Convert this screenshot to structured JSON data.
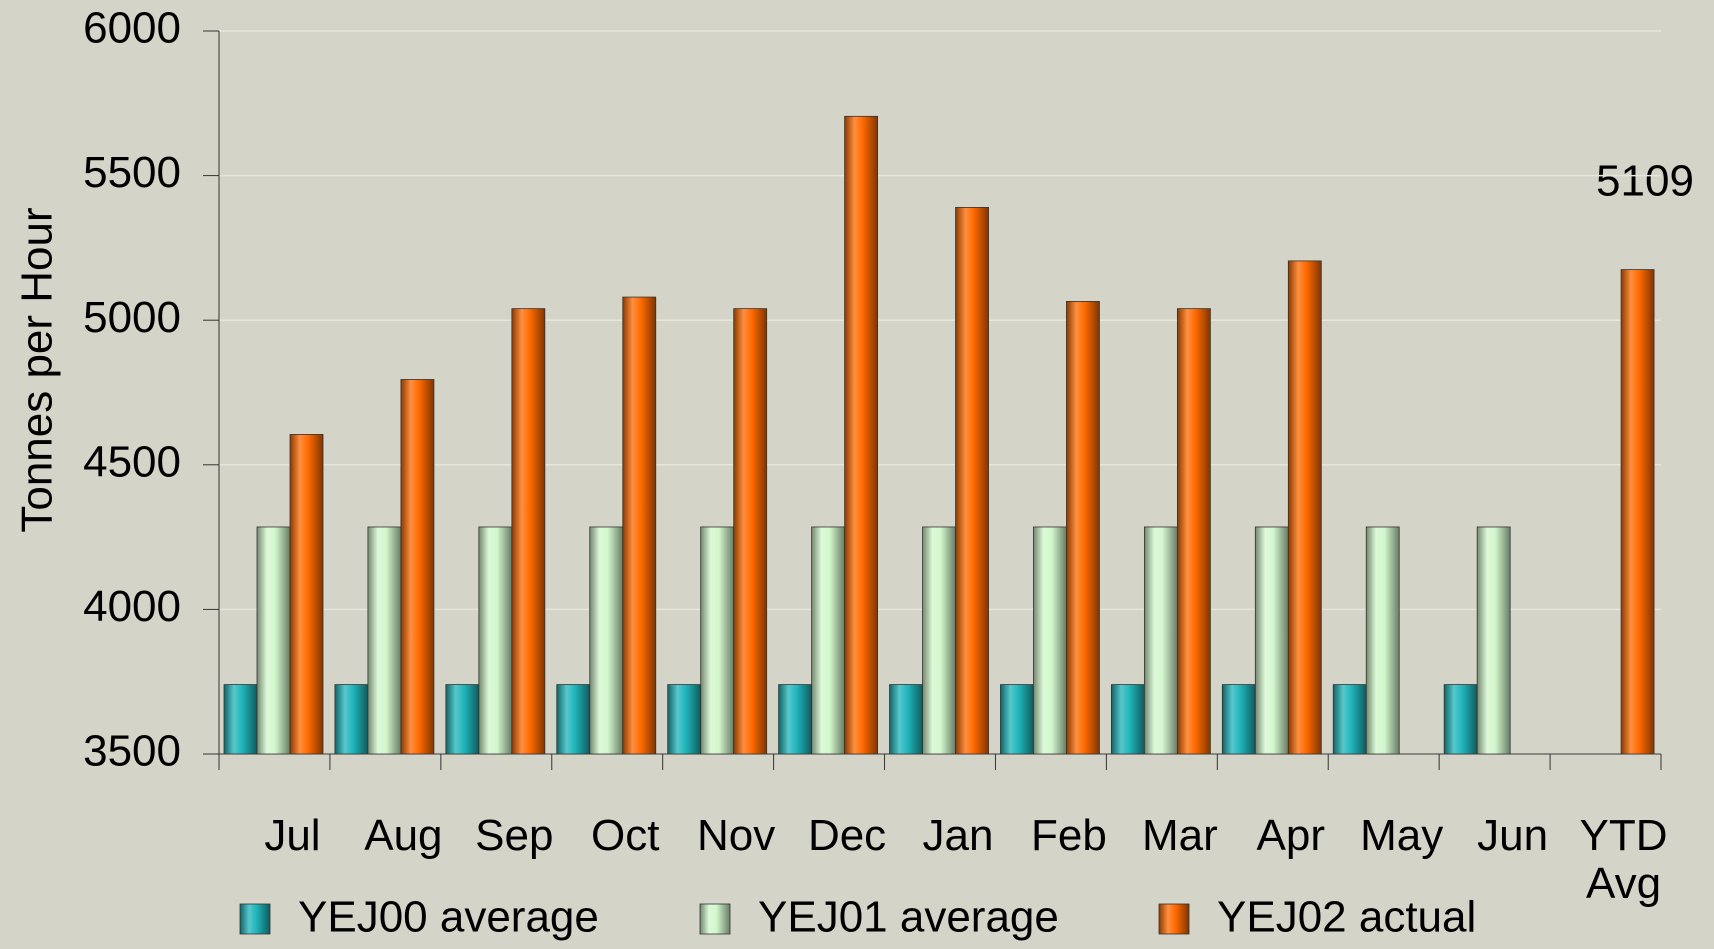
{
  "chart_data": {
    "type": "bar",
    "y_label": "Tonnes per Hour",
    "annotation": "5109",
    "categories": [
      "Jul",
      "Aug",
      "Sep",
      "Oct",
      "Nov",
      "Dec",
      "Jan",
      "Feb",
      "Mar",
      "Apr",
      "May",
      "Jun",
      "YTD Avg"
    ],
    "series": [
      {
        "name": "YEJ00 average",
        "color": "#1fb5bb",
        "values": [
          3740,
          3740,
          3740,
          3740,
          3740,
          3740,
          3740,
          3740,
          3740,
          3740,
          3740,
          3740,
          null
        ]
      },
      {
        "name": "YEJ01 average",
        "color": "#d2f7cc",
        "values": [
          4285,
          4285,
          4285,
          4285,
          4285,
          4285,
          4285,
          4285,
          4285,
          4285,
          4285,
          4285,
          null
        ]
      },
      {
        "name": "YEJ02 actual",
        "color": "#ff6a00",
        "values": [
          4605,
          4795,
          5040,
          5080,
          5040,
          5705,
          5390,
          5065,
          5040,
          5205,
          null,
          null,
          5175
        ]
      }
    ],
    "ylim": [
      3500,
      6000
    ],
    "yticks": [
      3500,
      4000,
      4500,
      5000,
      5500,
      6000
    ],
    "grid": true
  }
}
